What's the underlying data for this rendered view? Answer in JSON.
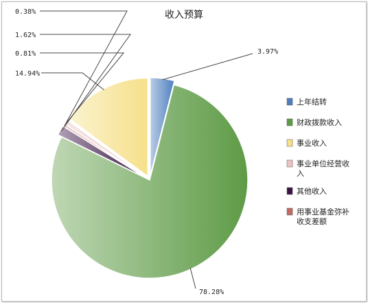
{
  "chart_data": {
    "type": "pie",
    "title": "收入预算",
    "slices": [
      {
        "label": "上年结转",
        "value": 3.97,
        "value_label": "3.97%",
        "color": "#4f7fbe"
      },
      {
        "label": "财政拨款收入",
        "value": 78.28,
        "value_label": "78.28%",
        "color": "#5e9b46"
      },
      {
        "label": "其他收入",
        "value": 1.62,
        "value_label": "1.62%",
        "color": "#3a1544"
      },
      {
        "label": "用事业基金弥补收支差额",
        "value": 0.38,
        "value_label": "0.38%",
        "color": "#c06a62"
      },
      {
        "label": "事业单位经营收入",
        "value": 0.81,
        "value_label": "0.81%",
        "color": "#ecc4c4"
      },
      {
        "label": "事业收入",
        "value": 14.94,
        "value_label": "14.94%",
        "color": "#f6e08a"
      }
    ],
    "legend": {
      "placement": "right",
      "entries": [
        {
          "lines": [
            "上年结转"
          ],
          "color": "#4f7fbe"
        },
        {
          "lines": [
            "财政拨款收入"
          ],
          "color": "#5e9b46"
        },
        {
          "lines": [
            "事业收入"
          ],
          "color": "#f6e08a"
        },
        {
          "lines": [
            "事业单位经营收",
            "入"
          ],
          "color": "#ecc4c4"
        },
        {
          "lines": [
            "其他收入"
          ],
          "color": "#3a1544"
        },
        {
          "lines": [
            "用事业基金弥补",
            "收支差额"
          ],
          "color": "#c06a62"
        }
      ]
    }
  }
}
